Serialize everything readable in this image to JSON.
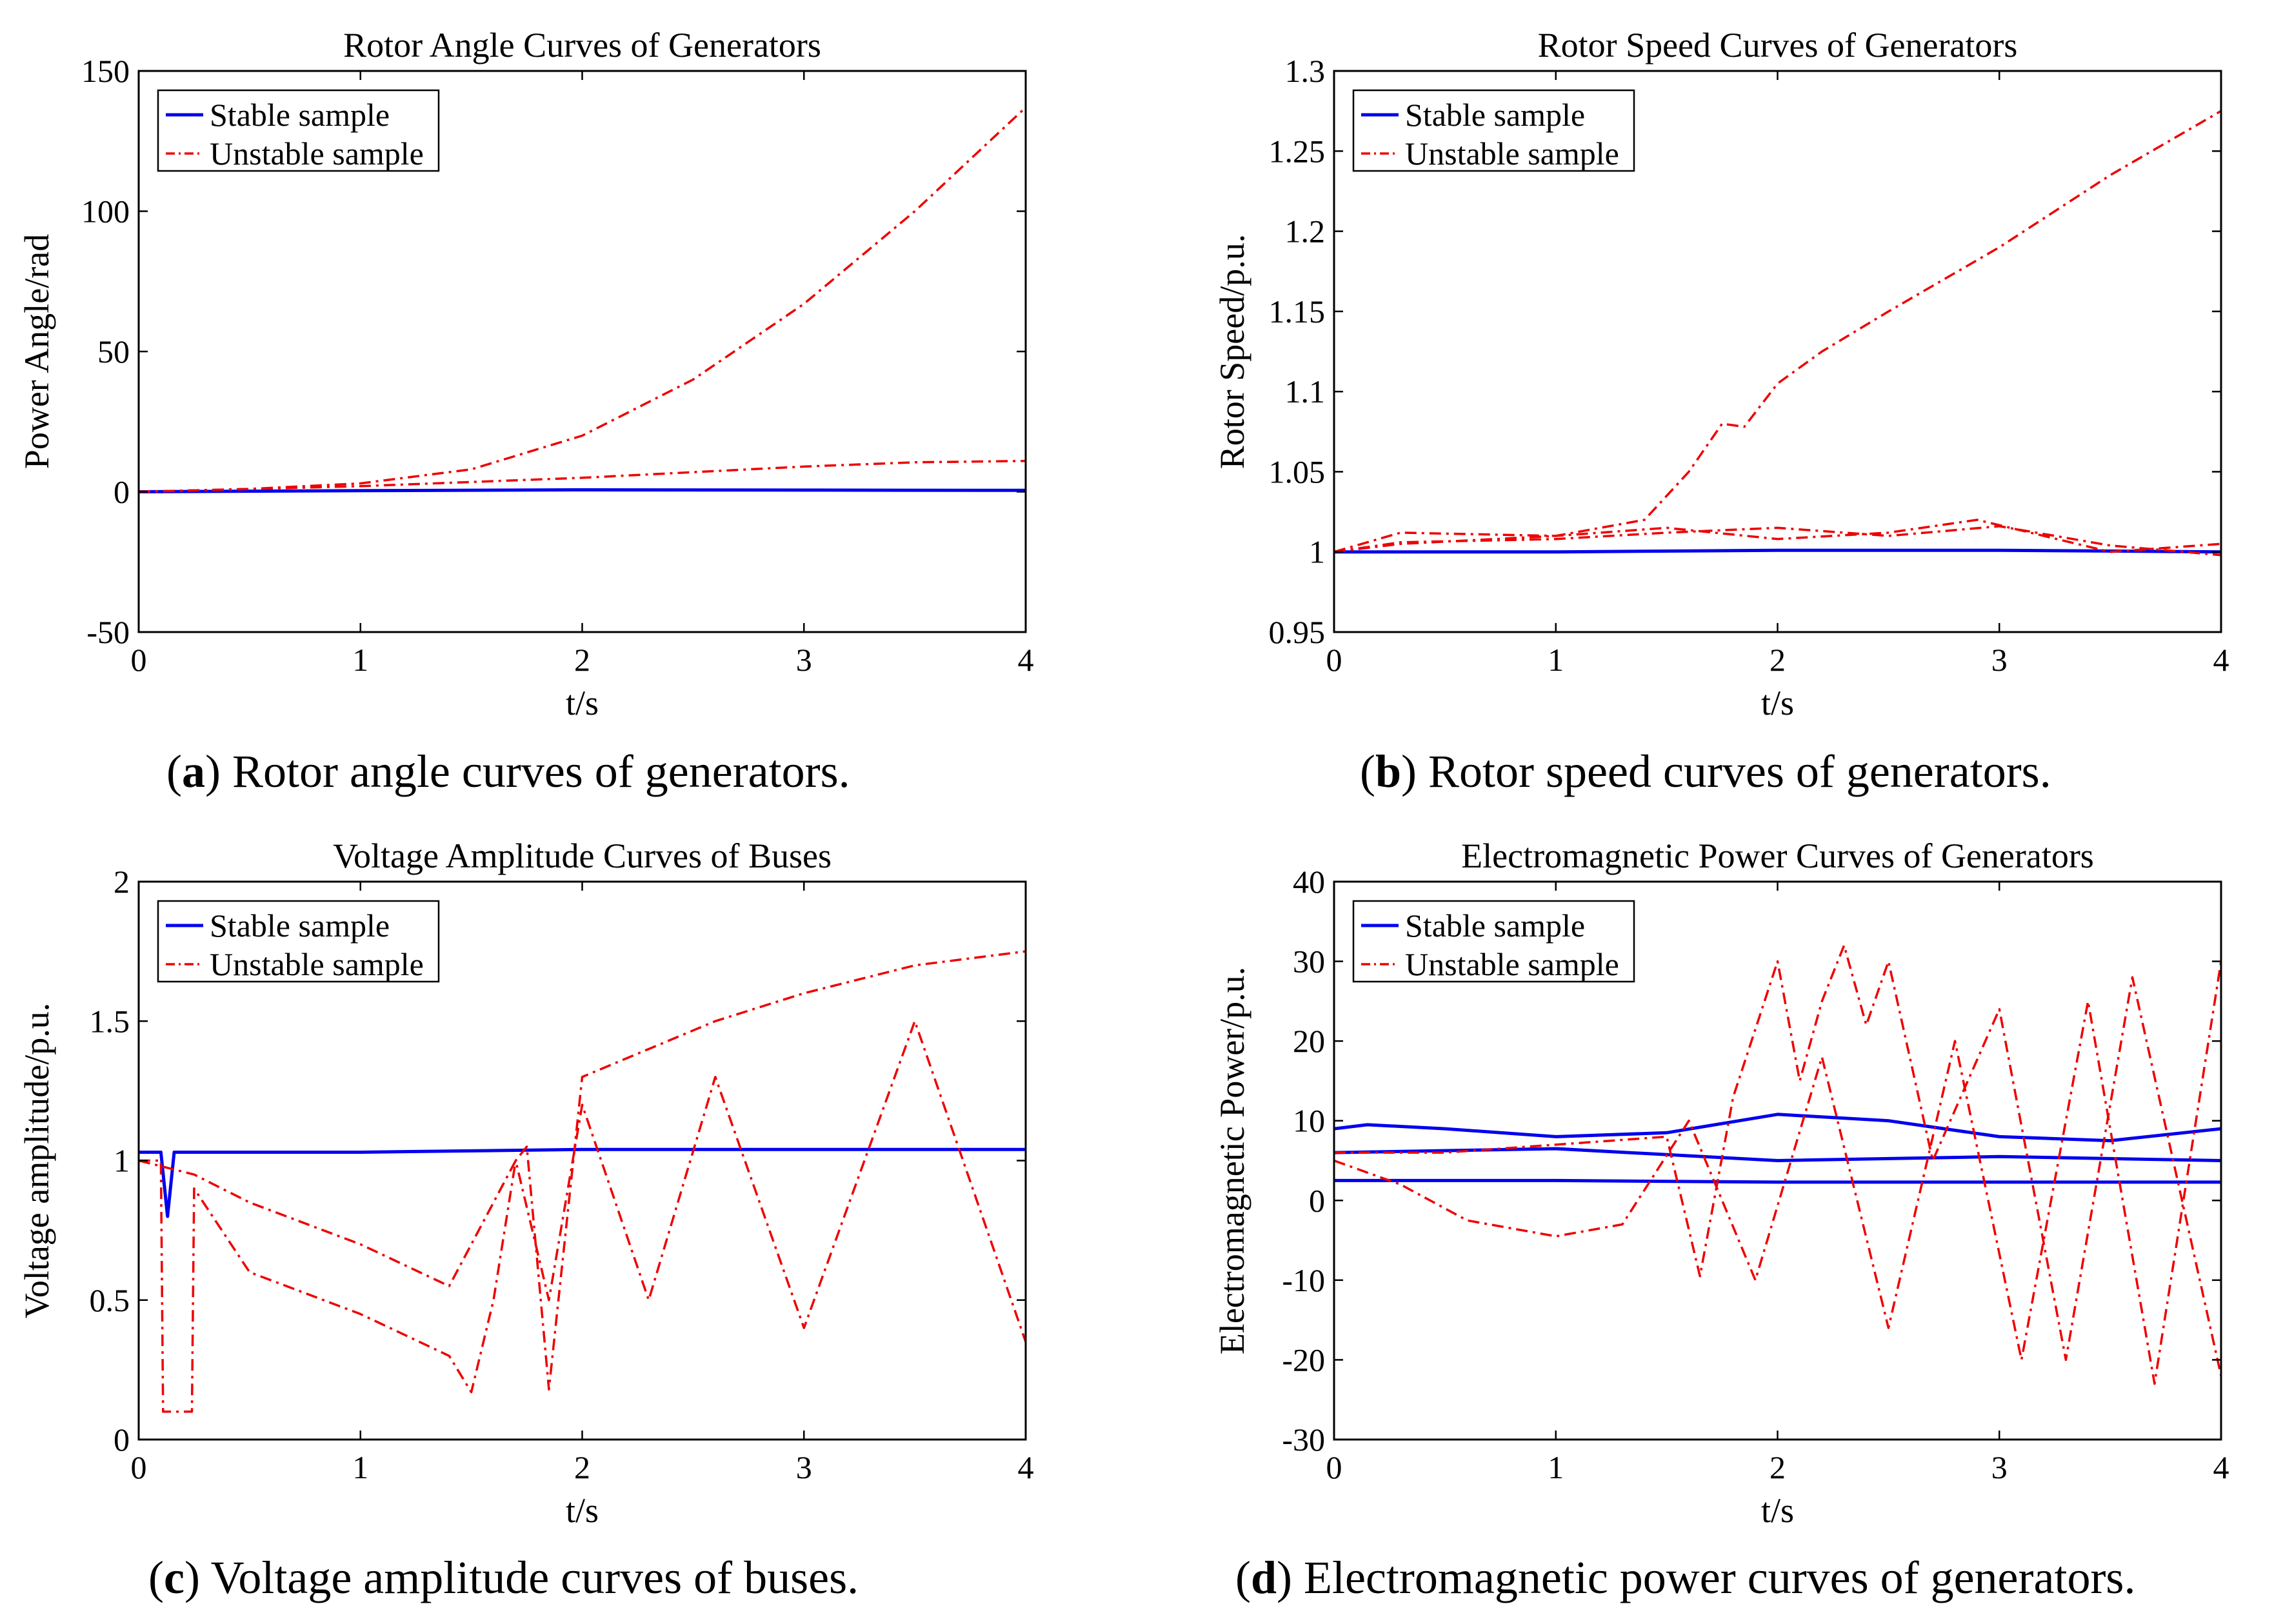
{
  "captions": {
    "a": {
      "letter": "a",
      "text": " Rotor angle curves of generators."
    },
    "b": {
      "letter": "b",
      "text": " Rotor speed curves of generators."
    },
    "c": {
      "letter": "c",
      "text": " Voltage amplitude curves of buses."
    },
    "d": {
      "letter": "d",
      "text": " Electromagnetic power curves of generators."
    }
  },
  "colors": {
    "stable": "#0000ee",
    "unstable": "#ee0000",
    "axis": "#000000"
  },
  "chart_data": [
    {
      "id": "a",
      "type": "line",
      "title": "Rotor Angle Curves of Generators",
      "xlabel": "t/s",
      "ylabel": "Power Angle/rad",
      "xlim": [
        0,
        4
      ],
      "ylim": [
        -50,
        150
      ],
      "xticks": [
        0,
        1,
        2,
        3,
        4
      ],
      "yticks": [
        -50,
        0,
        50,
        100,
        150
      ],
      "ytick_labels": [
        "-50",
        "0",
        "50",
        "100",
        "150"
      ],
      "legend": [
        "Stable sample",
        "Unstable sample"
      ],
      "legend_position": "top-left",
      "series": [
        {
          "name": "Stable sample",
          "style": "stable",
          "x": [
            0,
            1,
            2,
            3,
            4
          ],
          "y": [
            0,
            0.4,
            0.7,
            0.6,
            0.5
          ]
        },
        {
          "name": "Unstable sample",
          "style": "unstable",
          "x": [
            0,
            0.5,
            1,
            1.5,
            2,
            2.5,
            3,
            3.5,
            4
          ],
          "y": [
            0,
            1,
            3,
            8,
            20,
            40,
            67,
            100,
            137
          ]
        },
        {
          "name": "Unstable sample",
          "style": "unstable",
          "x": [
            0,
            1,
            2,
            3,
            3.5,
            4
          ],
          "y": [
            0,
            2,
            5,
            9,
            10.5,
            11
          ]
        }
      ]
    },
    {
      "id": "b",
      "type": "line",
      "title": "Rotor Speed Curves of Generators",
      "xlabel": "t/s",
      "ylabel": "Rotor Speed/p.u.",
      "xlim": [
        0,
        4
      ],
      "ylim": [
        0.95,
        1.3
      ],
      "xticks": [
        0,
        1,
        2,
        3,
        4
      ],
      "yticks": [
        0.95,
        1,
        1.05,
        1.1,
        1.15,
        1.2,
        1.25,
        1.3
      ],
      "ytick_labels": [
        "0.95",
        "1",
        "1.05",
        "1.1",
        "1.15",
        "1.2",
        "1.25",
        "1.3"
      ],
      "legend": [
        "Stable sample",
        "Unstable sample"
      ],
      "legend_position": "top-left",
      "series": [
        {
          "name": "Stable sample",
          "style": "stable",
          "x": [
            0,
            1,
            2,
            3,
            4
          ],
          "y": [
            1,
            1,
            1.001,
            1.001,
            1
          ]
        },
        {
          "name": "Unstable sample",
          "style": "unstable",
          "x": [
            0,
            0.3,
            1,
            1.4,
            1.6,
            1.75,
            1.85,
            2,
            2.2,
            2.5,
            3,
            3.5,
            4
          ],
          "y": [
            1,
            1.005,
            1.01,
            1.02,
            1.05,
            1.08,
            1.078,
            1.105,
            1.125,
            1.15,
            1.19,
            1.235,
            1.275
          ]
        },
        {
          "name": "Unstable sample",
          "style": "unstable",
          "x": [
            0,
            0.3,
            1,
            1.5,
            2,
            2.5,
            2.9,
            3.5,
            4
          ],
          "y": [
            1,
            1.012,
            1.01,
            1.015,
            1.008,
            1.012,
            1.02,
            1.0,
            1.005
          ]
        },
        {
          "name": "Unstable sample",
          "style": "unstable",
          "x": [
            0,
            0.3,
            1,
            1.5,
            2,
            2.5,
            3,
            3.5,
            4
          ],
          "y": [
            1,
            1.006,
            1.008,
            1.012,
            1.015,
            1.01,
            1.016,
            1.004,
            0.998
          ]
        }
      ]
    },
    {
      "id": "c",
      "type": "line",
      "title": "Voltage Amplitude Curves of Buses",
      "xlabel": "t/s",
      "ylabel": "Voltage amplitude/p.u.",
      "xlim": [
        0,
        4
      ],
      "ylim": [
        0,
        2
      ],
      "xticks": [
        0,
        1,
        2,
        3,
        4
      ],
      "yticks": [
        0,
        0.5,
        1,
        1.5,
        2
      ],
      "ytick_labels": [
        "0",
        "0.5",
        "1",
        "1.5",
        "2"
      ],
      "legend": [
        "Stable sample",
        "Unstable sample"
      ],
      "legend_position": "top-left",
      "series": [
        {
          "name": "Stable sample",
          "style": "stable",
          "x": [
            0,
            0.1,
            0.13,
            0.16,
            0.25,
            1,
            2,
            3,
            4
          ],
          "y": [
            1.03,
            1.03,
            0.8,
            1.03,
            1.03,
            1.03,
            1.04,
            1.04,
            1.04
          ]
        },
        {
          "name": "Unstable sample",
          "style": "unstable",
          "x": [
            0,
            0.1,
            0.11,
            0.24,
            0.25,
            0.5,
            1,
            1.4,
            1.5,
            1.6,
            1.7,
            1.75,
            1.85,
            2,
            2.3,
            2.6,
            3,
            3.5,
            4
          ],
          "y": [
            1,
            1,
            0.1,
            0.1,
            0.9,
            0.6,
            0.45,
            0.3,
            0.17,
            0.5,
            1.0,
            1.05,
            0.18,
            1.3,
            1.4,
            1.5,
            1.6,
            1.7,
            1.75
          ]
        },
        {
          "name": "Unstable sample",
          "style": "unstable",
          "x": [
            0,
            0.25,
            0.5,
            1,
            1.4,
            1.7,
            1.85,
            2.0,
            2.3,
            2.6,
            3,
            3.5,
            4
          ],
          "y": [
            1,
            0.95,
            0.85,
            0.7,
            0.55,
            1.0,
            0.5,
            1.2,
            0.5,
            1.3,
            0.4,
            1.5,
            0.35
          ]
        }
      ]
    },
    {
      "id": "d",
      "type": "line",
      "title": "Electromagnetic Power Curves of Generators",
      "xlabel": "t/s",
      "ylabel": "Electromagnetic Power/p.u.",
      "xlim": [
        0,
        4
      ],
      "ylim": [
        -30,
        40
      ],
      "xticks": [
        0,
        1,
        2,
        3,
        4
      ],
      "yticks": [
        -30,
        -20,
        -10,
        0,
        10,
        20,
        30,
        40
      ],
      "ytick_labels": [
        "-30",
        "-20",
        "-10",
        "0",
        "10",
        "20",
        "30",
        "40"
      ],
      "legend": [
        "Stable sample",
        "Unstable sample"
      ],
      "legend_position": "top-left",
      "series": [
        {
          "name": "Stable sample",
          "style": "stable",
          "x": [
            0,
            0.15,
            0.5,
            1,
            1.5,
            2,
            2.5,
            3,
            3.5,
            4
          ],
          "y": [
            9,
            9.5,
            9,
            8,
            8.5,
            10.8,
            10,
            8,
            7.5,
            9
          ]
        },
        {
          "name": "Stable sample",
          "style": "stable",
          "x": [
            0,
            1,
            2,
            3,
            4
          ],
          "y": [
            2.5,
            2.5,
            2.3,
            2.3,
            2.3
          ]
        },
        {
          "name": "Stable sample",
          "style": "stable",
          "x": [
            0,
            1,
            2,
            3,
            4
          ],
          "y": [
            6,
            6.5,
            5,
            5.5,
            5
          ]
        },
        {
          "name": "Unstable sample",
          "style": "unstable",
          "x": [
            0,
            0.5,
            1,
            1.5,
            1.65,
            1.8,
            2.0,
            2.1,
            2.2,
            2.3,
            2.4,
            2.5,
            2.7,
            3.0,
            3.3,
            3.6,
            4
          ],
          "y": [
            6,
            6,
            7,
            8,
            -9.5,
            13,
            30,
            15,
            25,
            32,
            22,
            30,
            5,
            24,
            -20,
            28,
            -22
          ]
        },
        {
          "name": "Unstable sample",
          "style": "unstable",
          "x": [
            0,
            0.3,
            0.6,
            1,
            1.3,
            1.6,
            1.9,
            2.2,
            2.5,
            2.8,
            3.1,
            3.4,
            3.7,
            4
          ],
          "y": [
            5,
            2,
            -2.5,
            -4.5,
            -3,
            10,
            -10,
            18,
            -16,
            20,
            -20,
            25,
            -23,
            30
          ]
        }
      ]
    }
  ]
}
